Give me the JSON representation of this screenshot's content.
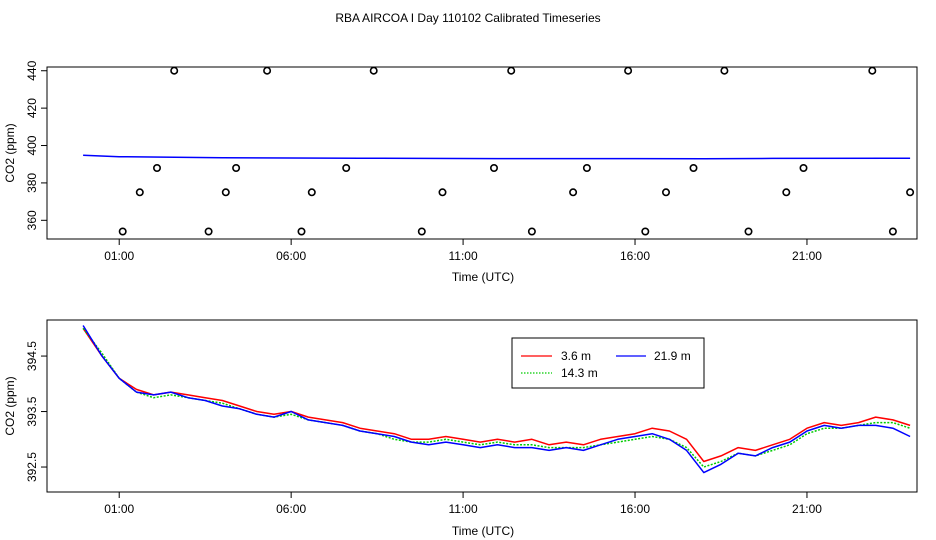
{
  "title": "RBA AIRCOA I  Day 110102  Calibrated Timeseries",
  "chart_data": [
    {
      "type": "scatter",
      "xlabel": "Time (UTC)",
      "ylabel": "CO2 (ppm)",
      "x_unit": "hours UTC",
      "xlim": [
        -1.1,
        24.2
      ],
      "ylim": [
        350,
        442
      ],
      "x_ticks": [
        1,
        6,
        11,
        16,
        21
      ],
      "x_tick_labels": [
        "01:00",
        "06:00",
        "11:00",
        "16:00",
        "21:00"
      ],
      "y_ticks": [
        360,
        380,
        400,
        420,
        440
      ],
      "y_tick_labels": [
        "360",
        "380",
        "400",
        "420",
        "440"
      ],
      "legend": "none",
      "grid": false,
      "lines": [
        {
          "color": "#0000ff",
          "x": [
            -0.05,
            1.0,
            4.0,
            8.0,
            12.0,
            16.0,
            18.0,
            20.0,
            24.0
          ],
          "y": [
            394.8,
            394.0,
            393.5,
            393.2,
            393.0,
            393.0,
            392.9,
            393.1,
            393.2
          ]
        }
      ],
      "points": {
        "x": [
          1.1,
          1.6,
          2.1,
          2.6,
          3.6,
          4.1,
          4.4,
          5.3,
          6.3,
          6.6,
          7.6,
          8.4,
          9.8,
          10.4,
          11.9,
          12.4,
          13.0,
          14.2,
          14.6,
          15.8,
          16.3,
          16.9,
          17.7,
          18.6,
          19.3,
          20.4,
          20.9,
          22.9,
          23.5,
          24.0
        ],
        "y": [
          354,
          375,
          388,
          440,
          354,
          375,
          388,
          440,
          354,
          375,
          388,
          440,
          354,
          375,
          388,
          440,
          354,
          375,
          388,
          440,
          354,
          375,
          388,
          440,
          354,
          375,
          388,
          440,
          354,
          375
        ]
      }
    },
    {
      "type": "line",
      "xlabel": "Time (UTC)",
      "ylabel": "CO2 (ppm)",
      "x_unit": "hours UTC",
      "xlim": [
        -1.1,
        24.2
      ],
      "ylim": [
        392.05,
        395.15
      ],
      "x_ticks": [
        1,
        6,
        11,
        16,
        21
      ],
      "x_tick_labels": [
        "01:00",
        "06:00",
        "11:00",
        "16:00",
        "21:00"
      ],
      "y_ticks": [
        392.5,
        393.5,
        394.5
      ],
      "y_tick_labels": [
        "392.5",
        "393.5",
        "394.5"
      ],
      "legend": "top-center",
      "grid": false,
      "series": [
        {
          "name": "3.6 m",
          "color": "#ff0000",
          "x": [
            -0.05,
            0.5,
            1.0,
            1.5,
            2.0,
            2.5,
            3.0,
            3.5,
            4.0,
            4.5,
            5.0,
            5.5,
            6.0,
            6.5,
            7.0,
            7.5,
            8.0,
            8.5,
            9.0,
            9.5,
            10.0,
            10.5,
            11.0,
            11.5,
            12.0,
            12.5,
            13.0,
            13.5,
            14.0,
            14.5,
            15.0,
            15.5,
            16.0,
            16.5,
            17.0,
            17.5,
            18.0,
            18.5,
            19.0,
            19.5,
            20.0,
            20.5,
            21.0,
            21.5,
            22.0,
            22.5,
            23.0,
            23.5,
            24.0
          ],
          "y": [
            395.0,
            394.5,
            394.1,
            393.9,
            393.8,
            393.85,
            393.8,
            393.75,
            393.7,
            393.6,
            393.5,
            393.45,
            393.5,
            393.4,
            393.35,
            393.3,
            393.2,
            393.15,
            393.1,
            393.0,
            393.0,
            393.05,
            393.0,
            392.95,
            393.0,
            392.95,
            393.0,
            392.9,
            392.95,
            392.9,
            393.0,
            393.05,
            393.1,
            393.2,
            393.15,
            393.0,
            392.6,
            392.7,
            392.85,
            392.8,
            392.9,
            393.0,
            393.2,
            393.3,
            393.25,
            393.3,
            393.4,
            393.35,
            393.25
          ]
        },
        {
          "name": "14.3 m",
          "color": "#00cc00",
          "x": [
            -0.05,
            0.5,
            1.0,
            1.5,
            2.0,
            2.5,
            3.0,
            3.5,
            4.0,
            4.5,
            5.0,
            5.5,
            6.0,
            6.5,
            7.0,
            7.5,
            8.0,
            8.5,
            9.0,
            9.5,
            10.0,
            10.5,
            11.0,
            11.5,
            12.0,
            12.5,
            13.0,
            13.5,
            14.0,
            14.5,
            15.0,
            15.5,
            16.0,
            16.5,
            17.0,
            17.5,
            18.0,
            18.5,
            19.0,
            19.5,
            20.0,
            20.5,
            21.0,
            21.5,
            22.0,
            22.5,
            23.0,
            23.5,
            24.0
          ],
          "y": [
            395.0,
            394.55,
            394.1,
            393.85,
            393.75,
            393.8,
            393.75,
            393.7,
            393.65,
            393.55,
            393.45,
            393.4,
            393.45,
            393.35,
            393.3,
            393.25,
            393.15,
            393.1,
            393.0,
            392.95,
            392.95,
            393.0,
            392.95,
            392.9,
            392.95,
            392.9,
            392.9,
            392.85,
            392.85,
            392.85,
            392.9,
            392.95,
            393.0,
            393.05,
            393.0,
            392.85,
            392.5,
            392.6,
            392.75,
            392.7,
            392.8,
            392.9,
            393.1,
            393.2,
            393.2,
            393.25,
            393.3,
            393.3,
            393.2
          ]
        },
        {
          "name": "21.9 m",
          "color": "#0000ff",
          "x": [
            -0.05,
            0.5,
            1.0,
            1.5,
            2.0,
            2.5,
            3.0,
            3.5,
            4.0,
            4.5,
            5.0,
            5.5,
            6.0,
            6.5,
            7.0,
            7.5,
            8.0,
            8.5,
            9.0,
            9.5,
            10.0,
            10.5,
            11.0,
            11.5,
            12.0,
            12.5,
            13.0,
            13.5,
            14.0,
            14.5,
            15.0,
            15.5,
            16.0,
            16.5,
            17.0,
            17.5,
            18.0,
            18.5,
            19.0,
            19.5,
            20.0,
            20.5,
            21.0,
            21.5,
            22.0,
            22.5,
            23.0,
            23.5,
            24.0
          ],
          "y": [
            395.05,
            394.5,
            394.1,
            393.85,
            393.8,
            393.85,
            393.75,
            393.7,
            393.6,
            393.55,
            393.45,
            393.4,
            393.5,
            393.35,
            393.3,
            393.25,
            393.15,
            393.1,
            393.05,
            392.95,
            392.9,
            392.95,
            392.9,
            392.85,
            392.9,
            392.85,
            392.85,
            392.8,
            392.85,
            392.8,
            392.9,
            393.0,
            393.05,
            393.1,
            393.0,
            392.8,
            392.4,
            392.55,
            392.75,
            392.7,
            392.85,
            392.95,
            393.15,
            393.25,
            393.2,
            393.25,
            393.25,
            393.2,
            393.05
          ]
        }
      ]
    }
  ]
}
